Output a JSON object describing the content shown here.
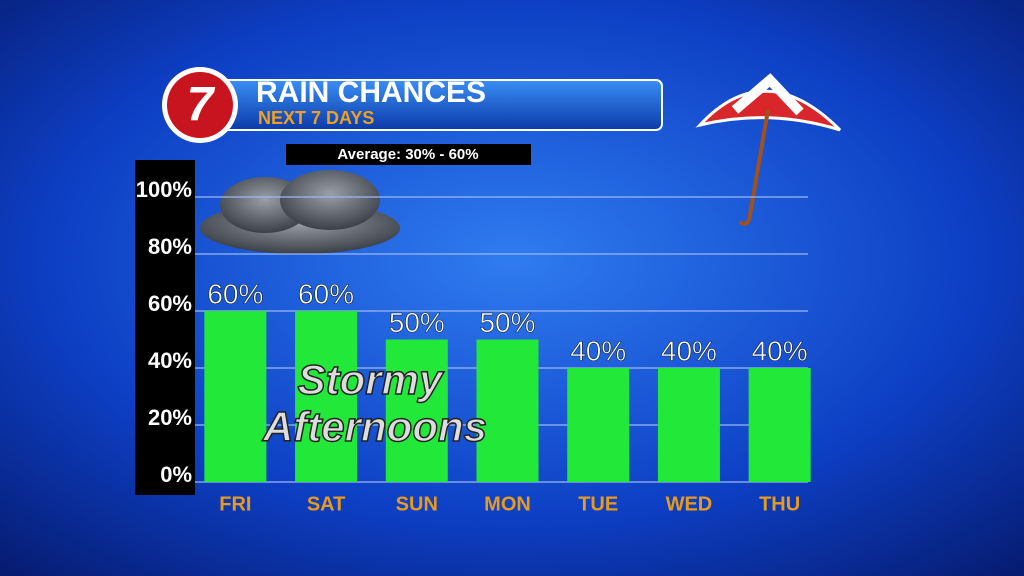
{
  "logo": "7",
  "chart_data": {
    "type": "bar",
    "title": "RAIN CHANCES",
    "subtitle": "NEXT 7 DAYS",
    "annotations": [
      "Average: 30% - 60%",
      "Stormy",
      "Afternoons"
    ],
    "categories": [
      "FRI",
      "SAT",
      "SUN",
      "MON",
      "TUE",
      "WED",
      "THU"
    ],
    "values": [
      60,
      60,
      50,
      50,
      40,
      40,
      40
    ],
    "value_labels": [
      "60%",
      "60%",
      "50%",
      "50%",
      "40%",
      "40%",
      "40%"
    ],
    "color": "#22e83a",
    "ylim": [
      0,
      100
    ],
    "yticks": [
      {
        "value": 0,
        "label": "0%"
      },
      {
        "value": 20,
        "label": "20%"
      },
      {
        "value": 40,
        "label": "40%"
      },
      {
        "value": 60,
        "label": "60%"
      },
      {
        "value": 80,
        "label": "80%"
      },
      {
        "value": 100,
        "label": "100%"
      }
    ],
    "grid": true
  }
}
